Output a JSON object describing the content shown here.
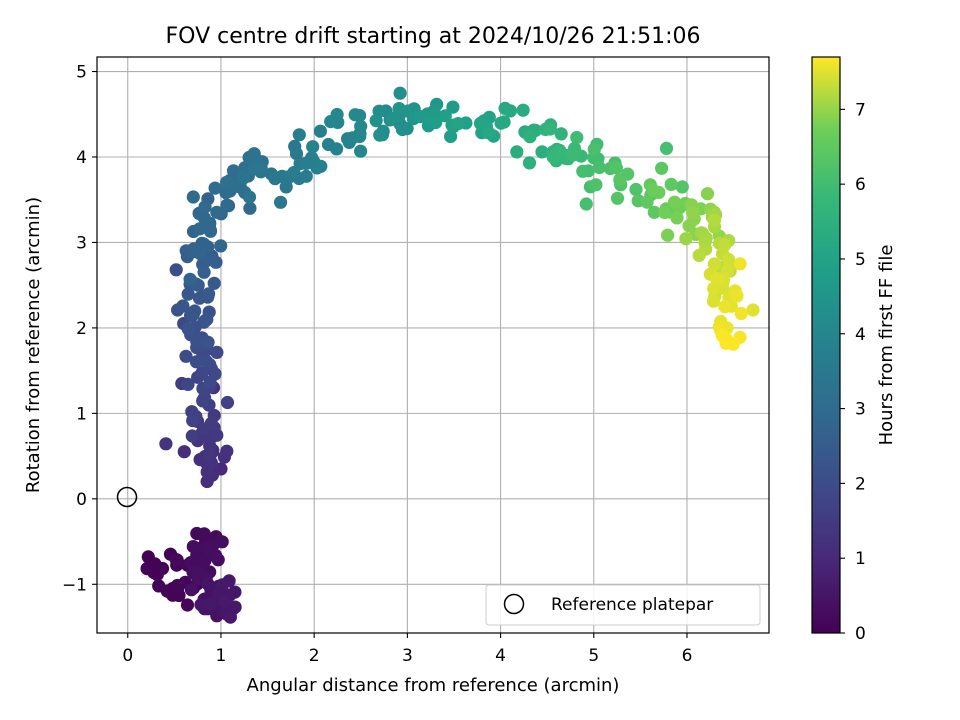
{
  "chart_data": {
    "type": "scatter",
    "title": "FOV centre drift starting at 2024/10/26 21:51:06",
    "xlabel": "Angular distance from reference (arcmin)",
    "ylabel": "Rotation from reference (arcmin)",
    "xlim": [
      -0.33,
      6.88
    ],
    "ylim": [
      -1.57,
      5.17
    ],
    "xticks": [
      0,
      1,
      2,
      3,
      4,
      5,
      6
    ],
    "yticks": [
      -1,
      0,
      1,
      2,
      3,
      4,
      5
    ],
    "xtick_labels": [
      "0",
      "1",
      "2",
      "3",
      "4",
      "5",
      "6"
    ],
    "ytick_labels": [
      "−1",
      "0",
      "1",
      "2",
      "3",
      "4",
      "5"
    ],
    "grid": true,
    "colormap": "viridis",
    "colorbar": {
      "label": "Hours from first FF file",
      "range": [
        0,
        7.7
      ],
      "ticks": [
        0,
        1,
        2,
        3,
        4,
        5,
        6,
        7
      ],
      "tick_labels": [
        "0",
        "1",
        "2",
        "3",
        "4",
        "5",
        "6",
        "7"
      ]
    },
    "reference_point": {
      "x": 0,
      "y": 0
    },
    "legend": {
      "position": "lower-right",
      "entries": [
        "Reference platepar"
      ]
    },
    "path_anchors": [
      [
        0.22,
        -0.68,
        0.05
      ],
      [
        0.55,
        -1.15,
        0.1
      ],
      [
        0.82,
        -0.55,
        0.2
      ],
      [
        0.85,
        -0.7,
        0.3
      ],
      [
        0.9,
        -1.12,
        0.4
      ],
      [
        0.97,
        -1.2,
        0.5
      ],
      [
        1.03,
        -1.15,
        0.6
      ],
      [
        0.9,
        0.35,
        1.1
      ],
      [
        0.85,
        0.6,
        1.3
      ],
      [
        0.82,
        1.0,
        1.6
      ],
      [
        0.8,
        1.5,
        1.9
      ],
      [
        0.78,
        2.0,
        2.15
      ],
      [
        0.76,
        2.4,
        2.35
      ],
      [
        0.8,
        2.8,
        2.6
      ],
      [
        0.85,
        3.2,
        2.85
      ],
      [
        1.1,
        3.6,
        3.05
      ],
      [
        1.3,
        3.85,
        3.25
      ],
      [
        1.8,
        3.8,
        3.55
      ],
      [
        2.2,
        4.2,
        3.85
      ],
      [
        2.6,
        4.4,
        4.15
      ],
      [
        3.0,
        4.5,
        4.45
      ],
      [
        3.5,
        4.45,
        4.8
      ],
      [
        4.0,
        4.35,
        5.15
      ],
      [
        4.5,
        4.2,
        5.55
      ],
      [
        4.8,
        4.05,
        5.85
      ],
      [
        5.2,
        3.85,
        6.15
      ],
      [
        5.6,
        3.55,
        6.5
      ],
      [
        6.0,
        3.3,
        6.85
      ],
      [
        6.25,
        3.1,
        7.1
      ],
      [
        6.35,
        2.8,
        7.3
      ],
      [
        6.4,
        2.4,
        7.5
      ],
      [
        6.42,
        1.8,
        7.7
      ]
    ],
    "points_per_segment": 14,
    "spread": {
      "x": 0.11,
      "y": 0.13
    },
    "extra_points": [
      [
        0.22,
        -0.68,
        0.02
      ],
      [
        0.55,
        -1.13,
        0.1
      ],
      [
        0.83,
        -0.53,
        0.2
      ],
      [
        0.84,
        -0.62,
        0.22
      ],
      [
        0.83,
        -0.72,
        0.3
      ],
      [
        0.9,
        -1.12,
        0.4
      ],
      [
        0.98,
        -1.25,
        0.45
      ],
      [
        1.05,
        -1.12,
        0.55
      ],
      [
        1.0,
        0.35,
        1.05
      ],
      [
        0.88,
        0.3,
        1.1
      ],
      [
        0.92,
        1.3,
        1.3
      ],
      [
        0.58,
        1.35,
        1.55
      ],
      [
        0.52,
        2.68,
        2.05
      ],
      [
        0.6,
        2.05,
        1.85
      ],
      [
        0.86,
        3.51,
        2.7
      ],
      [
        1.31,
        3.4,
        3.0
      ],
      [
        1.64,
        3.47,
        3.45
      ],
      [
        1.7,
        3.65,
        3.45
      ],
      [
        1.84,
        4.26,
        3.7
      ],
      [
        4.92,
        3.45,
        6.1
      ],
      [
        6.3,
        2.37,
        7.4
      ],
      [
        6.45,
        2.35,
        7.5
      ],
      [
        6.43,
        2.0,
        7.6
      ],
      [
        6.42,
        1.82,
        7.7
      ],
      [
        6.57,
        2.75,
        7.6
      ],
      [
        5.78,
        4.1,
        6.1
      ],
      [
        5.95,
        3.65,
        6.3
      ],
      [
        6.22,
        3.57,
        6.9
      ]
    ]
  }
}
